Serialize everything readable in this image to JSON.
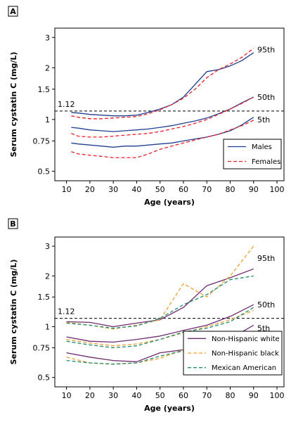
{
  "chart_data": [
    {
      "panel": "A",
      "type": "line",
      "xlabel": "Age (years)",
      "ylabel": "Serum cystatin C (mg/L)",
      "xlim": [
        5,
        103
      ],
      "ylim": [
        0.44,
        3.4
      ],
      "yscale": "log",
      "xticks": [
        10,
        20,
        30,
        40,
        50,
        60,
        70,
        80,
        90,
        100
      ],
      "yticks": [
        0.5,
        0.75,
        1,
        1.5,
        2,
        3
      ],
      "ytick_labels": [
        "0.5",
        "0.75",
        "1",
        "1.5",
        "2",
        "3"
      ],
      "reference_line": {
        "y": 1.12,
        "label": "1.12"
      },
      "percentile_labels": [
        {
          "text": "95th",
          "y": 2.55
        },
        {
          "text": "50th",
          "y": 1.35
        },
        {
          "text": "5th",
          "y": 1.0
        }
      ],
      "legend_position": "bottom-right",
      "legend": [
        {
          "name": "Males",
          "color": "#1f3f8f",
          "dash": "solid"
        },
        {
          "name": "Females",
          "color": "#e8202a",
          "dash": "dashed"
        }
      ],
      "series": [
        {
          "group": "Males",
          "pct": "95th",
          "x": [
            12,
            15,
            20,
            25,
            30,
            35,
            40,
            45,
            50,
            55,
            60,
            65,
            70,
            75,
            80,
            85,
            90
          ],
          "y": [
            1.1,
            1.09,
            1.07,
            1.06,
            1.05,
            1.05,
            1.06,
            1.1,
            1.15,
            1.22,
            1.35,
            1.6,
            1.9,
            1.95,
            2.05,
            2.2,
            2.45
          ]
        },
        {
          "group": "Males",
          "pct": "50th",
          "x": [
            12,
            15,
            20,
            25,
            30,
            35,
            40,
            45,
            50,
            55,
            60,
            65,
            70,
            75,
            80,
            85,
            90
          ],
          "y": [
            0.9,
            0.89,
            0.87,
            0.86,
            0.85,
            0.86,
            0.87,
            0.88,
            0.9,
            0.92,
            0.95,
            0.98,
            1.02,
            1.08,
            1.15,
            1.25,
            1.35
          ]
        },
        {
          "group": "Males",
          "pct": "5th",
          "x": [
            12,
            15,
            20,
            25,
            30,
            35,
            40,
            45,
            50,
            55,
            60,
            65,
            70,
            75,
            80,
            85,
            90
          ],
          "y": [
            0.73,
            0.72,
            0.71,
            0.7,
            0.69,
            0.7,
            0.7,
            0.71,
            0.72,
            0.73,
            0.75,
            0.77,
            0.79,
            0.82,
            0.86,
            0.93,
            1.03
          ]
        },
        {
          "group": "Females",
          "pct": "95th",
          "x": [
            12,
            15,
            20,
            25,
            30,
            35,
            40,
            45,
            50,
            55,
            60,
            65,
            70,
            75,
            80,
            85,
            90
          ],
          "y": [
            1.05,
            1.03,
            1.01,
            1.01,
            1.02,
            1.03,
            1.04,
            1.08,
            1.14,
            1.22,
            1.33,
            1.5,
            1.75,
            1.95,
            2.1,
            2.3,
            2.6
          ]
        },
        {
          "group": "Females",
          "pct": "50th",
          "x": [
            12,
            15,
            20,
            25,
            30,
            35,
            40,
            45,
            50,
            55,
            60,
            65,
            70,
            75,
            80,
            85,
            90
          ],
          "y": [
            0.83,
            0.8,
            0.79,
            0.79,
            0.8,
            0.81,
            0.82,
            0.83,
            0.85,
            0.88,
            0.91,
            0.95,
            1.0,
            1.07,
            1.15,
            1.24,
            1.35
          ]
        },
        {
          "group": "Females",
          "pct": "5th",
          "x": [
            12,
            15,
            20,
            25,
            30,
            35,
            40,
            45,
            50,
            55,
            60,
            65,
            70,
            75,
            80,
            85,
            90
          ],
          "y": [
            0.65,
            0.63,
            0.62,
            0.61,
            0.6,
            0.6,
            0.6,
            0.63,
            0.67,
            0.7,
            0.73,
            0.76,
            0.79,
            0.82,
            0.87,
            0.92,
            0.99
          ]
        }
      ]
    },
    {
      "panel": "B",
      "type": "line",
      "xlabel": "Age (years)",
      "ylabel": "Serum cystatin C (mg/L)",
      "xlim": [
        5,
        103
      ],
      "ylim": [
        0.44,
        3.4
      ],
      "yscale": "log",
      "xticks": [
        10,
        20,
        30,
        40,
        50,
        60,
        70,
        80,
        90,
        100
      ],
      "yticks": [
        0.5,
        0.75,
        1,
        1.5,
        2,
        3
      ],
      "ytick_labels": [
        "0.5",
        "0.75",
        "1",
        "1.5",
        "2",
        "3"
      ],
      "reference_line": {
        "y": 1.12,
        "label": "1.12"
      },
      "percentile_labels": [
        {
          "text": "95th",
          "y": 2.55
        },
        {
          "text": "50th",
          "y": 1.35
        },
        {
          "text": "5th",
          "y": 0.98
        }
      ],
      "legend_position": "bottom-right",
      "legend": [
        {
          "name": "Non-Hispanic white",
          "color": "#6e2b6e",
          "dash": "solid"
        },
        {
          "name": "Non-Hispanic black",
          "color": "#f0a030",
          "dash": "dashed"
        },
        {
          "name": "Mexican American",
          "color": "#1e8c6e",
          "dash": "dashed"
        }
      ],
      "series": [
        {
          "group": "Non-Hispanic white",
          "pct": "95th",
          "x": [
            10,
            20,
            30,
            40,
            50,
            60,
            70,
            80,
            90
          ],
          "y": [
            1.07,
            1.06,
            1.0,
            1.05,
            1.1,
            1.3,
            1.75,
            1.95,
            2.2
          ]
        },
        {
          "group": "Non-Hispanic white",
          "pct": "50th",
          "x": [
            10,
            20,
            30,
            40,
            50,
            60,
            70,
            80,
            90
          ],
          "y": [
            0.87,
            0.82,
            0.81,
            0.84,
            0.88,
            0.95,
            1.02,
            1.15,
            1.35
          ]
        },
        {
          "group": "Non-Hispanic white",
          "pct": "5th",
          "x": [
            10,
            20,
            30,
            40,
            50,
            60,
            70,
            80,
            90
          ],
          "y": [
            0.7,
            0.66,
            0.63,
            0.62,
            0.7,
            0.73,
            0.78,
            0.85,
            1.02
          ]
        },
        {
          "group": "Non-Hispanic black",
          "pct": "95th",
          "x": [
            10,
            20,
            30,
            40,
            50,
            60,
            70,
            80,
            90
          ],
          "y": [
            1.06,
            1.02,
            0.97,
            1.02,
            1.1,
            1.8,
            1.5,
            2.0,
            3.0
          ]
        },
        {
          "group": "Non-Hispanic black",
          "pct": "50th",
          "x": [
            10,
            20,
            30,
            40,
            50,
            60,
            70,
            80,
            90
          ],
          "y": [
            0.84,
            0.8,
            0.77,
            0.79,
            0.84,
            0.92,
            1.0,
            1.1,
            1.25
          ]
        },
        {
          "group": "Non-Hispanic black",
          "pct": "5th",
          "x": [
            10,
            20,
            30,
            40,
            50,
            60,
            70,
            80,
            90
          ],
          "y": [
            0.66,
            0.61,
            0.6,
            0.61,
            0.65,
            0.73,
            0.71,
            0.78,
            0.87
          ]
        },
        {
          "group": "Mexican American",
          "pct": "95th",
          "x": [
            10,
            20,
            30,
            40,
            50,
            60,
            70,
            80,
            90
          ],
          "y": [
            1.05,
            1.02,
            0.98,
            1.01,
            1.12,
            1.35,
            1.55,
            1.9,
            2.0
          ]
        },
        {
          "group": "Mexican American",
          "pct": "50th",
          "x": [
            10,
            20,
            30,
            40,
            50,
            60,
            70,
            80,
            90
          ],
          "y": [
            0.82,
            0.78,
            0.75,
            0.77,
            0.84,
            0.93,
            0.98,
            1.07,
            1.3
          ]
        },
        {
          "group": "Mexican American",
          "pct": "5th",
          "x": [
            10,
            20,
            30,
            40,
            50,
            60,
            70,
            80,
            90
          ],
          "y": [
            0.63,
            0.61,
            0.6,
            0.61,
            0.67,
            0.72,
            0.73,
            0.8,
            0.89
          ]
        }
      ]
    }
  ]
}
